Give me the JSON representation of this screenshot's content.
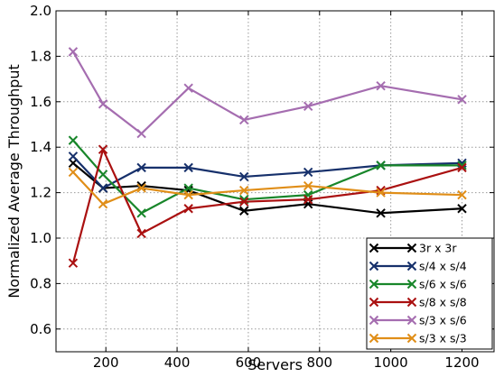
{
  "chart_data": {
    "type": "line",
    "xlabel": "Servers",
    "ylabel": "Normalized Average Throughput",
    "xlim": [
      60,
      1290
    ],
    "ylim": [
      0.5,
      2.0
    ],
    "xticks": [
      200,
      400,
      600,
      800,
      1000,
      1200
    ],
    "yticks": [
      0.6,
      0.8,
      1.0,
      1.2,
      1.4,
      1.6,
      1.8,
      2.0
    ],
    "xtick_labels": [
      "200",
      "400",
      "600",
      "800",
      "1000",
      "1200"
    ],
    "ytick_labels": [
      "0.6",
      "0.8",
      "1.0",
      "1.2",
      "1.4",
      "1.6",
      "1.8",
      "2.0"
    ],
    "grid": true,
    "legend_position": "bottom-right",
    "marker": "x",
    "x": [
      108,
      192,
      300,
      432,
      588,
      768,
      972,
      1200
    ],
    "series": [
      {
        "name": "3r x 3r",
        "color": "#000000",
        "values": [
          1.33,
          1.22,
          1.23,
          1.21,
          1.12,
          1.15,
          1.11,
          1.13
        ]
      },
      {
        "name": "s/4 x s/4",
        "color": "#16306b",
        "values": [
          1.36,
          1.22,
          1.31,
          1.31,
          1.27,
          1.29,
          1.32,
          1.33
        ]
      },
      {
        "name": "s/6 x s/6",
        "color": "#18862a",
        "values": [
          1.43,
          1.28,
          1.11,
          1.22,
          1.17,
          1.19,
          1.32,
          1.32
        ]
      },
      {
        "name": "s/8 x s/8",
        "color": "#aa1010",
        "values": [
          0.89,
          1.39,
          1.02,
          1.13,
          1.16,
          1.17,
          1.21,
          1.31
        ]
      },
      {
        "name": "s/3 x s/6",
        "color": "#a56db0",
        "values": [
          1.82,
          1.59,
          1.46,
          1.66,
          1.52,
          1.58,
          1.67,
          1.61
        ]
      },
      {
        "name": "s/3 x s/3",
        "color": "#e08e18",
        "values": [
          1.29,
          1.15,
          1.22,
          1.19,
          1.21,
          1.23,
          1.2,
          1.19
        ]
      }
    ]
  }
}
